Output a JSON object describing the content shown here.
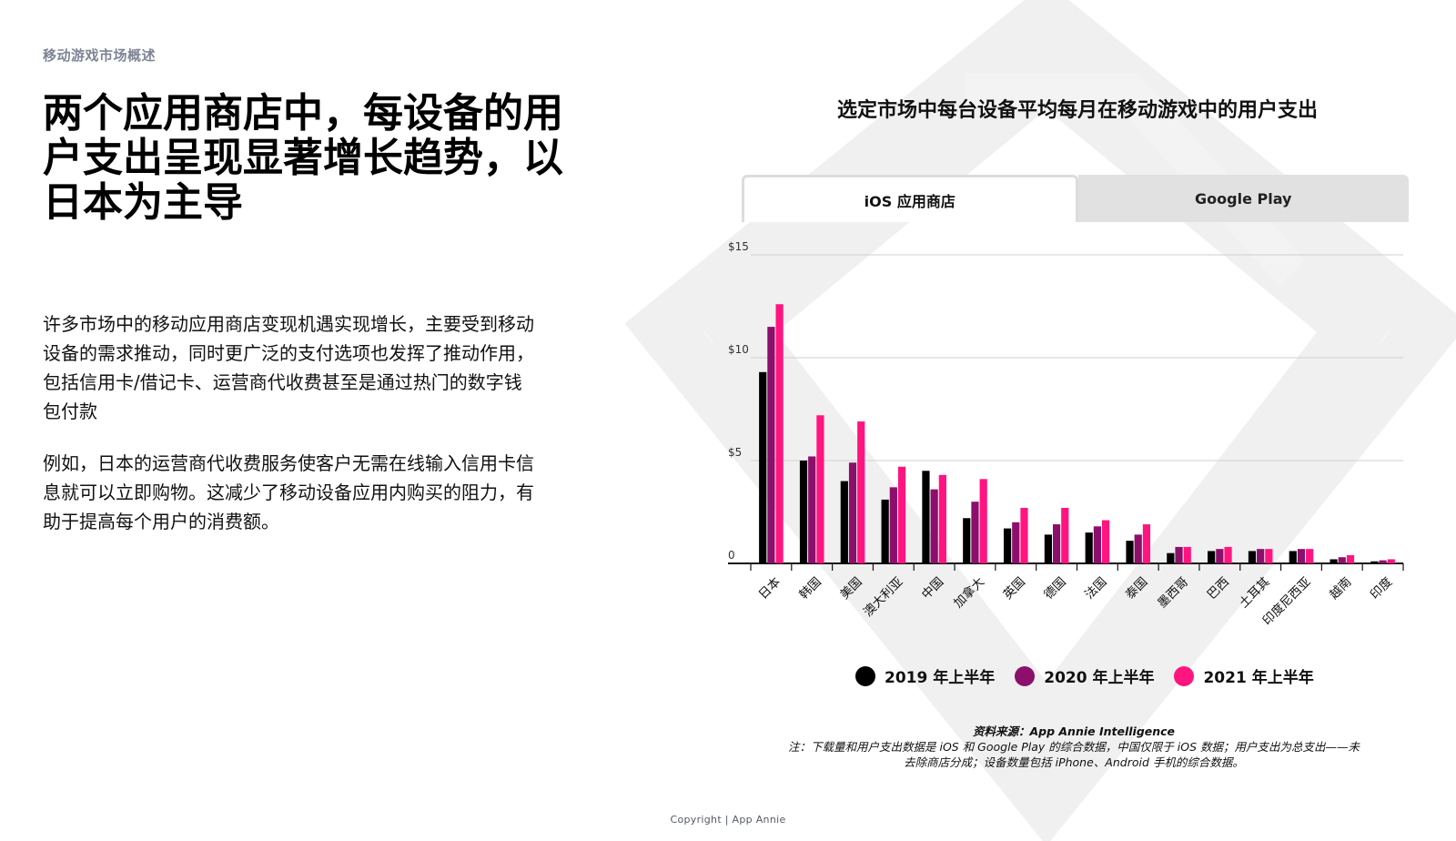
{
  "header": {
    "section_label": "移动游戏市场概述",
    "headline": "两个应用商店中，每设备的用户支出呈现显著增长趋势，以日本为主导"
  },
  "body": {
    "paragraph_1": "许多市场中的移动应用商店变现机遇实现增长，主要受到移动设备的需求推动，同时更广泛的支付选项也发挥了推动作用，包括信用卡/借记卡、运营商代收费甚至是通过热门的数字钱包付款",
    "paragraph_2": "例如，日本的运营商代收费服务使客户无需在线输入信用卡信息就可以立即购物。这减少了移动设备应用内购买的阻力，有助于提高每个用户的消费额。"
  },
  "tabs": [
    {
      "label": "iOS 应用商店",
      "active": true
    },
    {
      "label": "Google Play",
      "active": false
    }
  ],
  "chart_data": {
    "type": "bar",
    "title": "选定市场中每台设备平均每月在移动游戏中的用户支出",
    "categories": [
      "日本",
      "韩国",
      "美国",
      "澳大利亚",
      "中国",
      "加拿大",
      "英国",
      "德国",
      "法国",
      "泰国",
      "墨西哥",
      "巴西",
      "土耳其",
      "印度尼西亚",
      "越南",
      "印度"
    ],
    "series": [
      {
        "name": "2019 年上半年",
        "color": "#000000",
        "values": [
          9.3,
          5.0,
          4.0,
          3.1,
          4.5,
          2.2,
          1.7,
          1.4,
          1.5,
          1.1,
          0.5,
          0.6,
          0.6,
          0.6,
          0.2,
          0.1
        ]
      },
      {
        "name": "2020 年上半年",
        "color": "#8b0f6b",
        "values": [
          11.5,
          5.2,
          4.9,
          3.7,
          3.6,
          3.0,
          2.0,
          1.9,
          1.8,
          1.4,
          0.8,
          0.7,
          0.7,
          0.7,
          0.3,
          0.15
        ]
      },
      {
        "name": "2021 年上半年",
        "color": "#ff1480",
        "values": [
          12.6,
          7.2,
          6.9,
          4.7,
          4.3,
          4.1,
          2.7,
          2.7,
          2.1,
          1.9,
          0.8,
          0.8,
          0.7,
          0.7,
          0.4,
          0.2
        ]
      }
    ],
    "y_ticks": [
      {
        "value": 0,
        "label": "0"
      },
      {
        "value": 5,
        "label": "$5"
      },
      {
        "value": 10,
        "label": "$10"
      },
      {
        "value": 15,
        "label": "$15"
      }
    ],
    "ylim": [
      0,
      15
    ],
    "grid": true,
    "legend_position": "bottom"
  },
  "source": {
    "line": "资料来源：App Annie Intelligence",
    "note": "注：下载量和用户支出数据是 iOS 和 Google Play 的综合数据，中国仅限于 iOS 数据；用户支出为总支出——未去除商店分成；设备数量包括 iPhone、Android 手机的综合数据。"
  },
  "footer": {
    "copyright": "Copyright | App Annie"
  },
  "colors": {
    "watermark": "#efefef",
    "section_label": "#7d8494"
  }
}
